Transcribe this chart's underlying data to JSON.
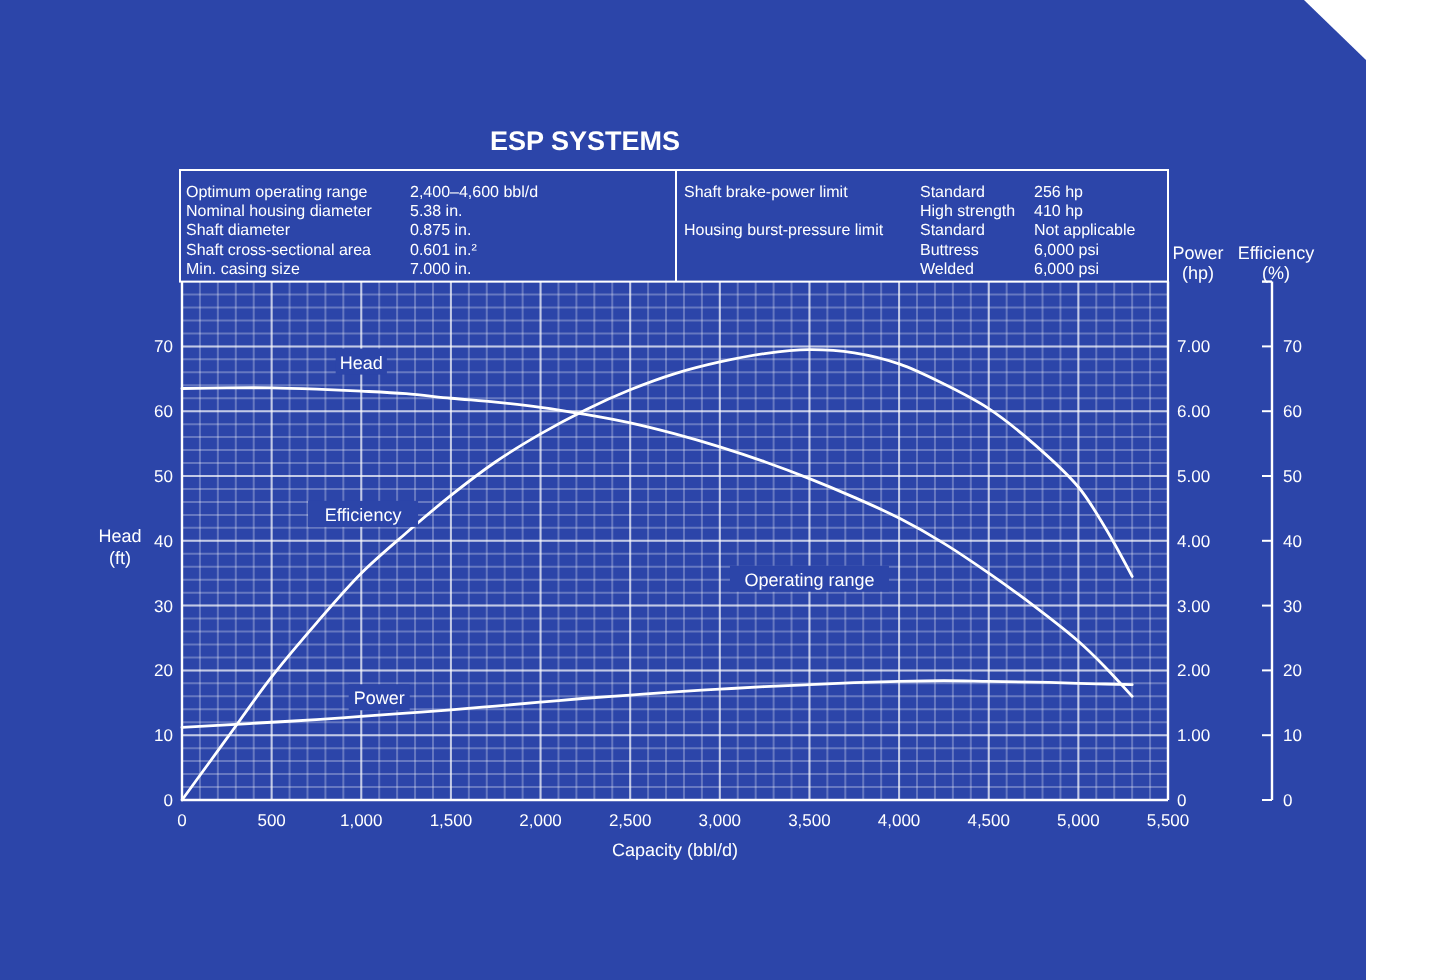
{
  "chart_data": {
    "type": "line",
    "title": "ESP SYSTEMS",
    "xlabel": "Capacity (bbl/d)",
    "ylabel": "Head (ft)",
    "y2label": "Power (hp)",
    "y3label": "Efficiency (%)",
    "x": [
      0,
      250,
      500,
      750,
      1000,
      1250,
      1500,
      1750,
      2000,
      2250,
      2500,
      2750,
      3000,
      3250,
      3500,
      3750,
      4000,
      4250,
      4500,
      4750,
      5000,
      5150,
      5300
    ],
    "xlim": [
      0,
      5500
    ],
    "xticks": [
      0,
      500,
      {
        "value": 1000,
        "label": "1,000"
      },
      {
        "value": 1500,
        "label": "1,500"
      },
      {
        "value": 2000,
        "label": "2,000"
      },
      {
        "value": 2500,
        "label": "2,500"
      },
      {
        "value": 3000,
        "label": "3,000"
      },
      {
        "value": 3500,
        "label": "3,500"
      },
      {
        "value": 4000,
        "label": "4,000"
      },
      {
        "value": 4500,
        "label": "4,500"
      },
      {
        "value": 5000,
        "label": "5,000"
      },
      {
        "value": 5500,
        "label": "5,500"
      }
    ],
    "ylim": [
      0,
      80
    ],
    "yticks": [
      0,
      10,
      20,
      30,
      40,
      50,
      60,
      70
    ],
    "y2lim": [
      0,
      8
    ],
    "y2ticks": [
      0,
      {
        "value": 1,
        "label": "1.00"
      },
      {
        "value": 2,
        "label": "2.00"
      },
      {
        "value": 3,
        "label": "3.00"
      },
      {
        "value": 4,
        "label": "4.00"
      },
      {
        "value": 5,
        "label": "5.00"
      },
      {
        "value": 6,
        "label": "6.00"
      },
      {
        "value": 7,
        "label": "7.00"
      }
    ],
    "y3lim": [
      0,
      80
    ],
    "y3ticks": [
      0,
      10,
      20,
      30,
      40,
      50,
      60,
      70
    ],
    "grid": true,
    "series": [
      {
        "name": "Head",
        "color": "#ffffff",
        "values": [
          63.5,
          63.6,
          63.6,
          63.4,
          63.1,
          62.7,
          62.0,
          61.4,
          60.6,
          59.5,
          58.2,
          56.5,
          54.5,
          52.2,
          49.6,
          46.7,
          43.5,
          39.6,
          35.0,
          30.0,
          24.5,
          20.5,
          16.0
        ]
      },
      {
        "name": "Efficiency",
        "color": "#ffffff",
        "axis": "y3",
        "values": [
          0,
          9.5,
          19,
          27.3,
          35,
          41.2,
          47,
          52.2,
          56.5,
          60.2,
          63.3,
          65.8,
          67.6,
          68.9,
          69.5,
          69.0,
          67.3,
          64.2,
          60.4,
          55,
          48.3,
          42,
          34.5
        ]
      },
      {
        "name": "Power",
        "color": "#ffffff",
        "axis": "y2",
        "values": [
          1.12,
          1.16,
          1.2,
          1.24,
          1.29,
          1.34,
          1.39,
          1.45,
          1.51,
          1.57,
          1.62,
          1.67,
          1.71,
          1.75,
          1.78,
          1.81,
          1.83,
          1.84,
          1.83,
          1.82,
          1.8,
          1.79,
          1.78
        ]
      }
    ],
    "annotations": [
      "Optimum operating range",
      "2,400–4,600 bbl/d",
      "Nominal housing diameter",
      "5.38 in.",
      "Shaft diameter",
      "0.875 in.",
      "Shaft cross-sectional area",
      "0.601 in.²",
      "Min. casing size",
      "7.000 in.",
      "Shaft brake-power limit",
      "Standard",
      "256 hp",
      "High strength",
      "410 hp",
      "Housing burst-pressure limit",
      "Standard",
      "Not applicable",
      "Buttress",
      "6,000 psi",
      "Welded",
      "6,000 psi",
      "Operating range"
    ]
  }
}
